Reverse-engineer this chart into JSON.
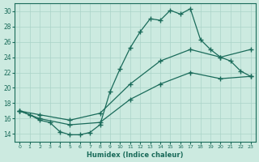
{
  "xlabel": "Humidex (Indice chaleur)",
  "background_color": "#cceae0",
  "grid_color": "#aad4c8",
  "line_color": "#1a6b5a",
  "xlim": [
    -0.5,
    23.5
  ],
  "ylim": [
    13.0,
    31.0
  ],
  "xticks": [
    0,
    1,
    2,
    3,
    4,
    5,
    6,
    7,
    8,
    9,
    10,
    11,
    12,
    13,
    14,
    15,
    16,
    17,
    18,
    19,
    20,
    21,
    22,
    23
  ],
  "yticks": [
    14,
    16,
    18,
    20,
    22,
    24,
    26,
    28,
    30
  ],
  "line1_x": [
    0,
    1,
    2,
    3,
    4,
    5,
    6,
    7,
    8,
    9,
    10,
    11,
    12,
    13,
    14,
    15,
    16,
    17,
    18,
    19,
    20,
    21,
    22,
    23
  ],
  "line1_y": [
    17.0,
    16.5,
    15.8,
    15.5,
    14.3,
    13.9,
    13.9,
    14.2,
    15.2,
    19.5,
    22.5,
    25.2,
    27.3,
    29.0,
    28.8,
    30.1,
    29.6,
    30.3,
    26.3,
    25.0,
    24.0,
    23.5,
    22.2,
    21.5
  ],
  "line2_x": [
    0,
    2,
    5,
    8,
    11,
    14,
    17,
    20,
    23
  ],
  "line2_y": [
    17.0,
    16.5,
    15.8,
    16.7,
    20.5,
    23.5,
    25.0,
    24.0,
    25.0
  ],
  "line3_x": [
    0,
    2,
    5,
    8,
    11,
    14,
    17,
    20,
    23
  ],
  "line3_y": [
    17.0,
    16.0,
    15.2,
    15.5,
    18.5,
    20.5,
    22.0,
    21.2,
    21.5
  ]
}
